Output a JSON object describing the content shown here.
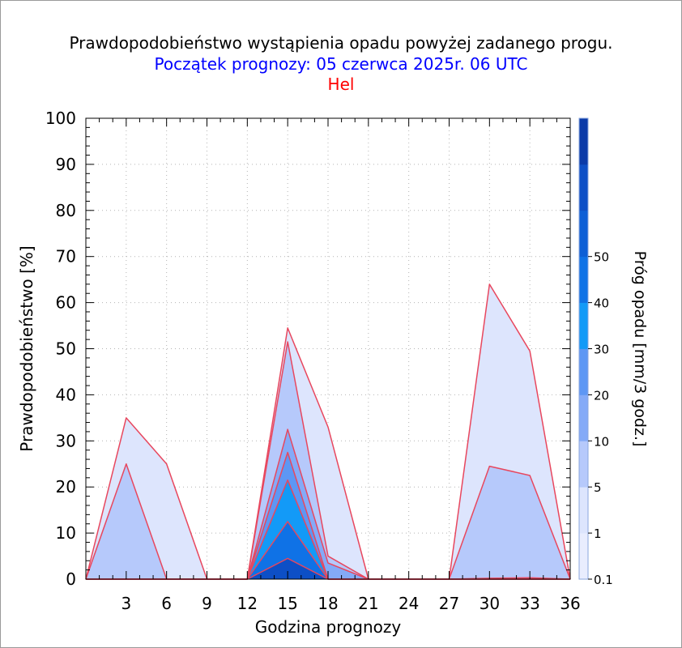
{
  "title": {
    "line1": "Prawdopodobieństwo wystąpienia opadu powyżej zadanego progu.",
    "line2": "Początek prognozy: 05 czerwca 2025r. 06 UTC",
    "line3": "Hel"
  },
  "colors": {
    "line2": "#0000ff",
    "line3": "#ff0000",
    "outline": "#e8475e",
    "grid": "#b4b4b4"
  },
  "chart_data": {
    "type": "area",
    "xlabel": "Godzina prognozy",
    "ylabel": "Prawdopodobieństwo [%]",
    "x": [
      0,
      3,
      6,
      9,
      12,
      15,
      18,
      21,
      24,
      27,
      30,
      33,
      36
    ],
    "xticks": [
      "3",
      "6",
      "9",
      "12",
      "15",
      "18",
      "21",
      "24",
      "27",
      "30",
      "33",
      "36"
    ],
    "xlim": [
      0,
      36
    ],
    "ylim": [
      0,
      100
    ],
    "yticks": [
      "0",
      "10",
      "20",
      "30",
      "40",
      "50",
      "60",
      "70",
      "80",
      "90",
      "100"
    ],
    "grid": true,
    "series": [
      {
        "name": "0.1",
        "color": "#dde5fd",
        "values": [
          0,
          35,
          25,
          0,
          0,
          54.5,
          33,
          0,
          0,
          0,
          64,
          49.5,
          0
        ]
      },
      {
        "name": "1",
        "color": "#b6c9fb",
        "values": [
          0,
          25,
          0,
          0,
          0,
          51.5,
          5,
          0,
          0,
          0,
          24.5,
          22.5,
          0
        ]
      },
      {
        "name": "5",
        "color": "#84aaf7",
        "values": [
          0,
          0,
          0,
          0,
          0,
          32.5,
          3.5,
          0,
          0,
          0,
          0.2,
          0.3,
          0
        ]
      },
      {
        "name": "10",
        "color": "#5d97f4",
        "values": [
          0,
          0,
          0,
          0,
          0,
          27.5,
          0,
          0,
          0,
          0,
          0,
          0,
          0
        ]
      },
      {
        "name": "20",
        "color": "#139af7",
        "values": [
          0,
          0,
          0,
          0,
          0,
          21.5,
          0,
          0,
          0,
          0,
          0,
          0,
          0
        ]
      },
      {
        "name": "30",
        "color": "#0f72e6",
        "values": [
          0,
          0,
          0,
          0,
          0,
          12.5,
          0,
          0,
          0,
          0,
          0,
          0,
          0
        ]
      },
      {
        "name": "40",
        "color": "#0d4fc6",
        "values": [
          0,
          0,
          0,
          0,
          0,
          4.5,
          0,
          0,
          0,
          0,
          0,
          0,
          0
        ]
      }
    ],
    "colorbar": {
      "label": "Próg opadu [mm/3 godz.]",
      "ticks": [
        "0.1",
        "1",
        "5",
        "10",
        "20",
        "30",
        "40",
        "50"
      ],
      "bands": [
        "#e9edfe",
        "#dde5fd",
        "#b6c9fb",
        "#84aaf7",
        "#5d97f4",
        "#139af7",
        "#0f72e6",
        "#0d5fd6",
        "#0d4fc6",
        "#0a3aa8"
      ]
    }
  }
}
